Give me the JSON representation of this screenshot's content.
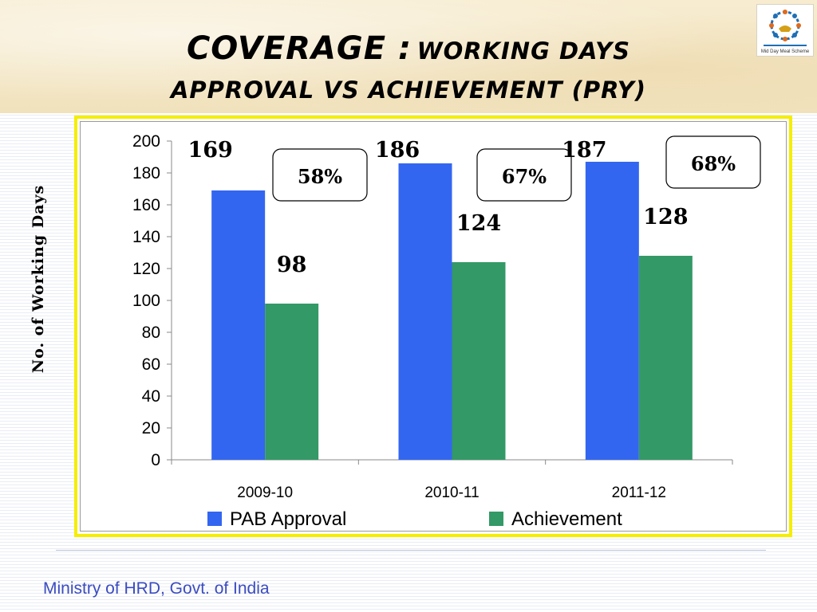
{
  "header": {
    "title_main": "COVERAGE :",
    "title_sub": "Working days",
    "title_line2": "Approval vs  Achievement (PRY)"
  },
  "logo": {
    "icon": "mid-day-meal-logo",
    "text": "Mid Day Meal Scheme"
  },
  "footer": {
    "text": "Ministry of HRD, Govt. of India"
  },
  "chart_data": {
    "type": "bar",
    "title": "",
    "ylabel": "No. of Working Days",
    "xlabel": "",
    "ylim": [
      0,
      200
    ],
    "yticks": [
      0,
      20,
      40,
      60,
      80,
      100,
      120,
      140,
      160,
      180,
      200
    ],
    "categories": [
      "2009-10",
      "2010-11",
      "2011-12"
    ],
    "series": [
      {
        "name": "PAB Approval",
        "values": [
          169,
          186,
          187
        ],
        "color": "#3366f0"
      },
      {
        "name": "Achievement",
        "values": [
          98,
          124,
          128
        ],
        "color": "#339966"
      }
    ],
    "annotations": [
      "58%",
      "67%",
      "68%"
    ],
    "grid": false,
    "legend": "bottom"
  }
}
